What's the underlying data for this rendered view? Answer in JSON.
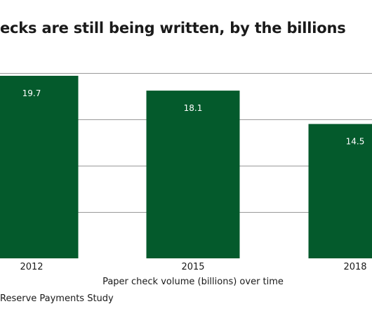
{
  "chart_data": {
    "type": "bar",
    "title": "ecks are still being written, by the billions",
    "categories": [
      "2012",
      "2015",
      "2018"
    ],
    "values": [
      19.7,
      18.1,
      14.5
    ],
    "data_labels": [
      "19.7",
      "18.1",
      "14.5"
    ],
    "xlabel": "Paper check volume (billions) over time",
    "ylabel": "",
    "ylim": [
      0,
      20
    ],
    "grid": true,
    "bar_color": "#045a2c"
  },
  "source": "Reserve Payments Study"
}
